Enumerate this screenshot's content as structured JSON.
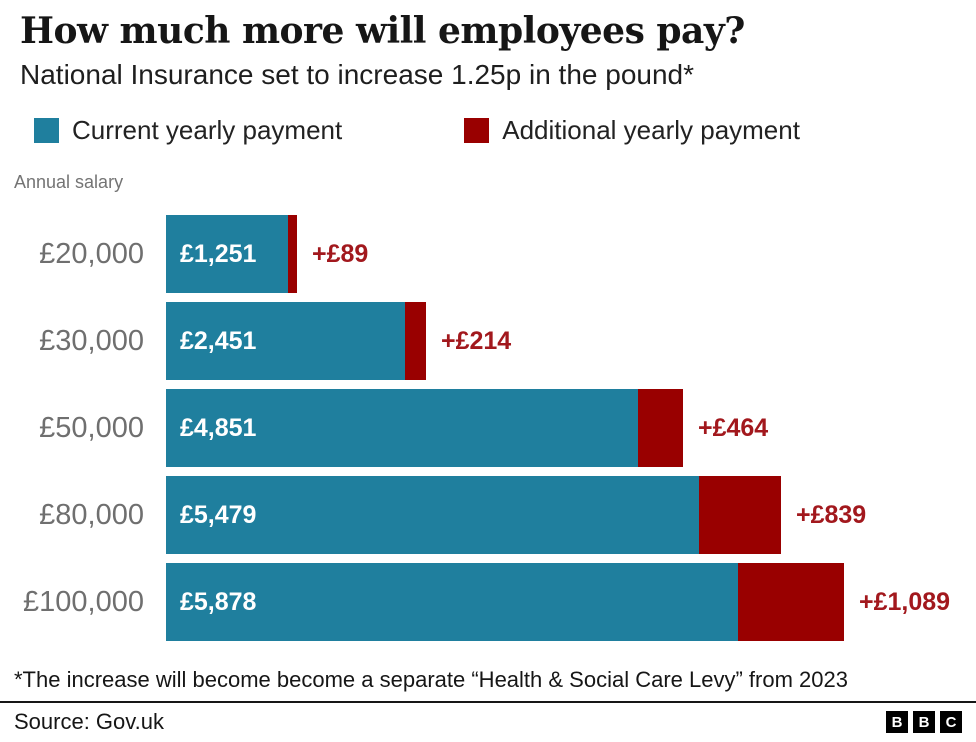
{
  "header": {
    "title": "How much more will employees pay?",
    "subtitle": "National Insurance set to increase 1.25p in the pound*"
  },
  "legend": {
    "items": [
      {
        "label": "Current yearly payment",
        "color": "#1f7f9e"
      },
      {
        "label": "Additional yearly payment",
        "color": "#990000"
      }
    ]
  },
  "chart_data": {
    "type": "bar",
    "orientation": "horizontal",
    "stacked": true,
    "title": "How much more will employees pay?",
    "subtitle": "National Insurance set to increase 1.25p in the pound*",
    "axis_note": "Annual salary",
    "categories": [
      "£20,000",
      "£30,000",
      "£50,000",
      "£80,000",
      "£100,000"
    ],
    "series": [
      {
        "name": "Current yearly payment",
        "color": "#1f7f9e",
        "values": [
          1251,
          2451,
          4851,
          5479,
          5878
        ],
        "labels": [
          "£1,251",
          "£2,451",
          "£4,851",
          "£5,479",
          "£5,878"
        ]
      },
      {
        "name": "Additional yearly payment",
        "color": "#990000",
        "values": [
          89,
          214,
          464,
          839,
          1089
        ],
        "labels": [
          "+£89",
          "+£214",
          "+£464",
          "+£839",
          "+£1,089"
        ]
      }
    ],
    "annotation_color": "#a2181d",
    "xlim": [
      0,
      6967
    ],
    "grid": false,
    "legend_position": "top"
  },
  "footnote": "*The increase will become become a separate “Health & Social Care Levy” from 2023",
  "footer": {
    "source": "Source: Gov.uk",
    "logo_blocks": [
      "B",
      "B",
      "C"
    ]
  }
}
